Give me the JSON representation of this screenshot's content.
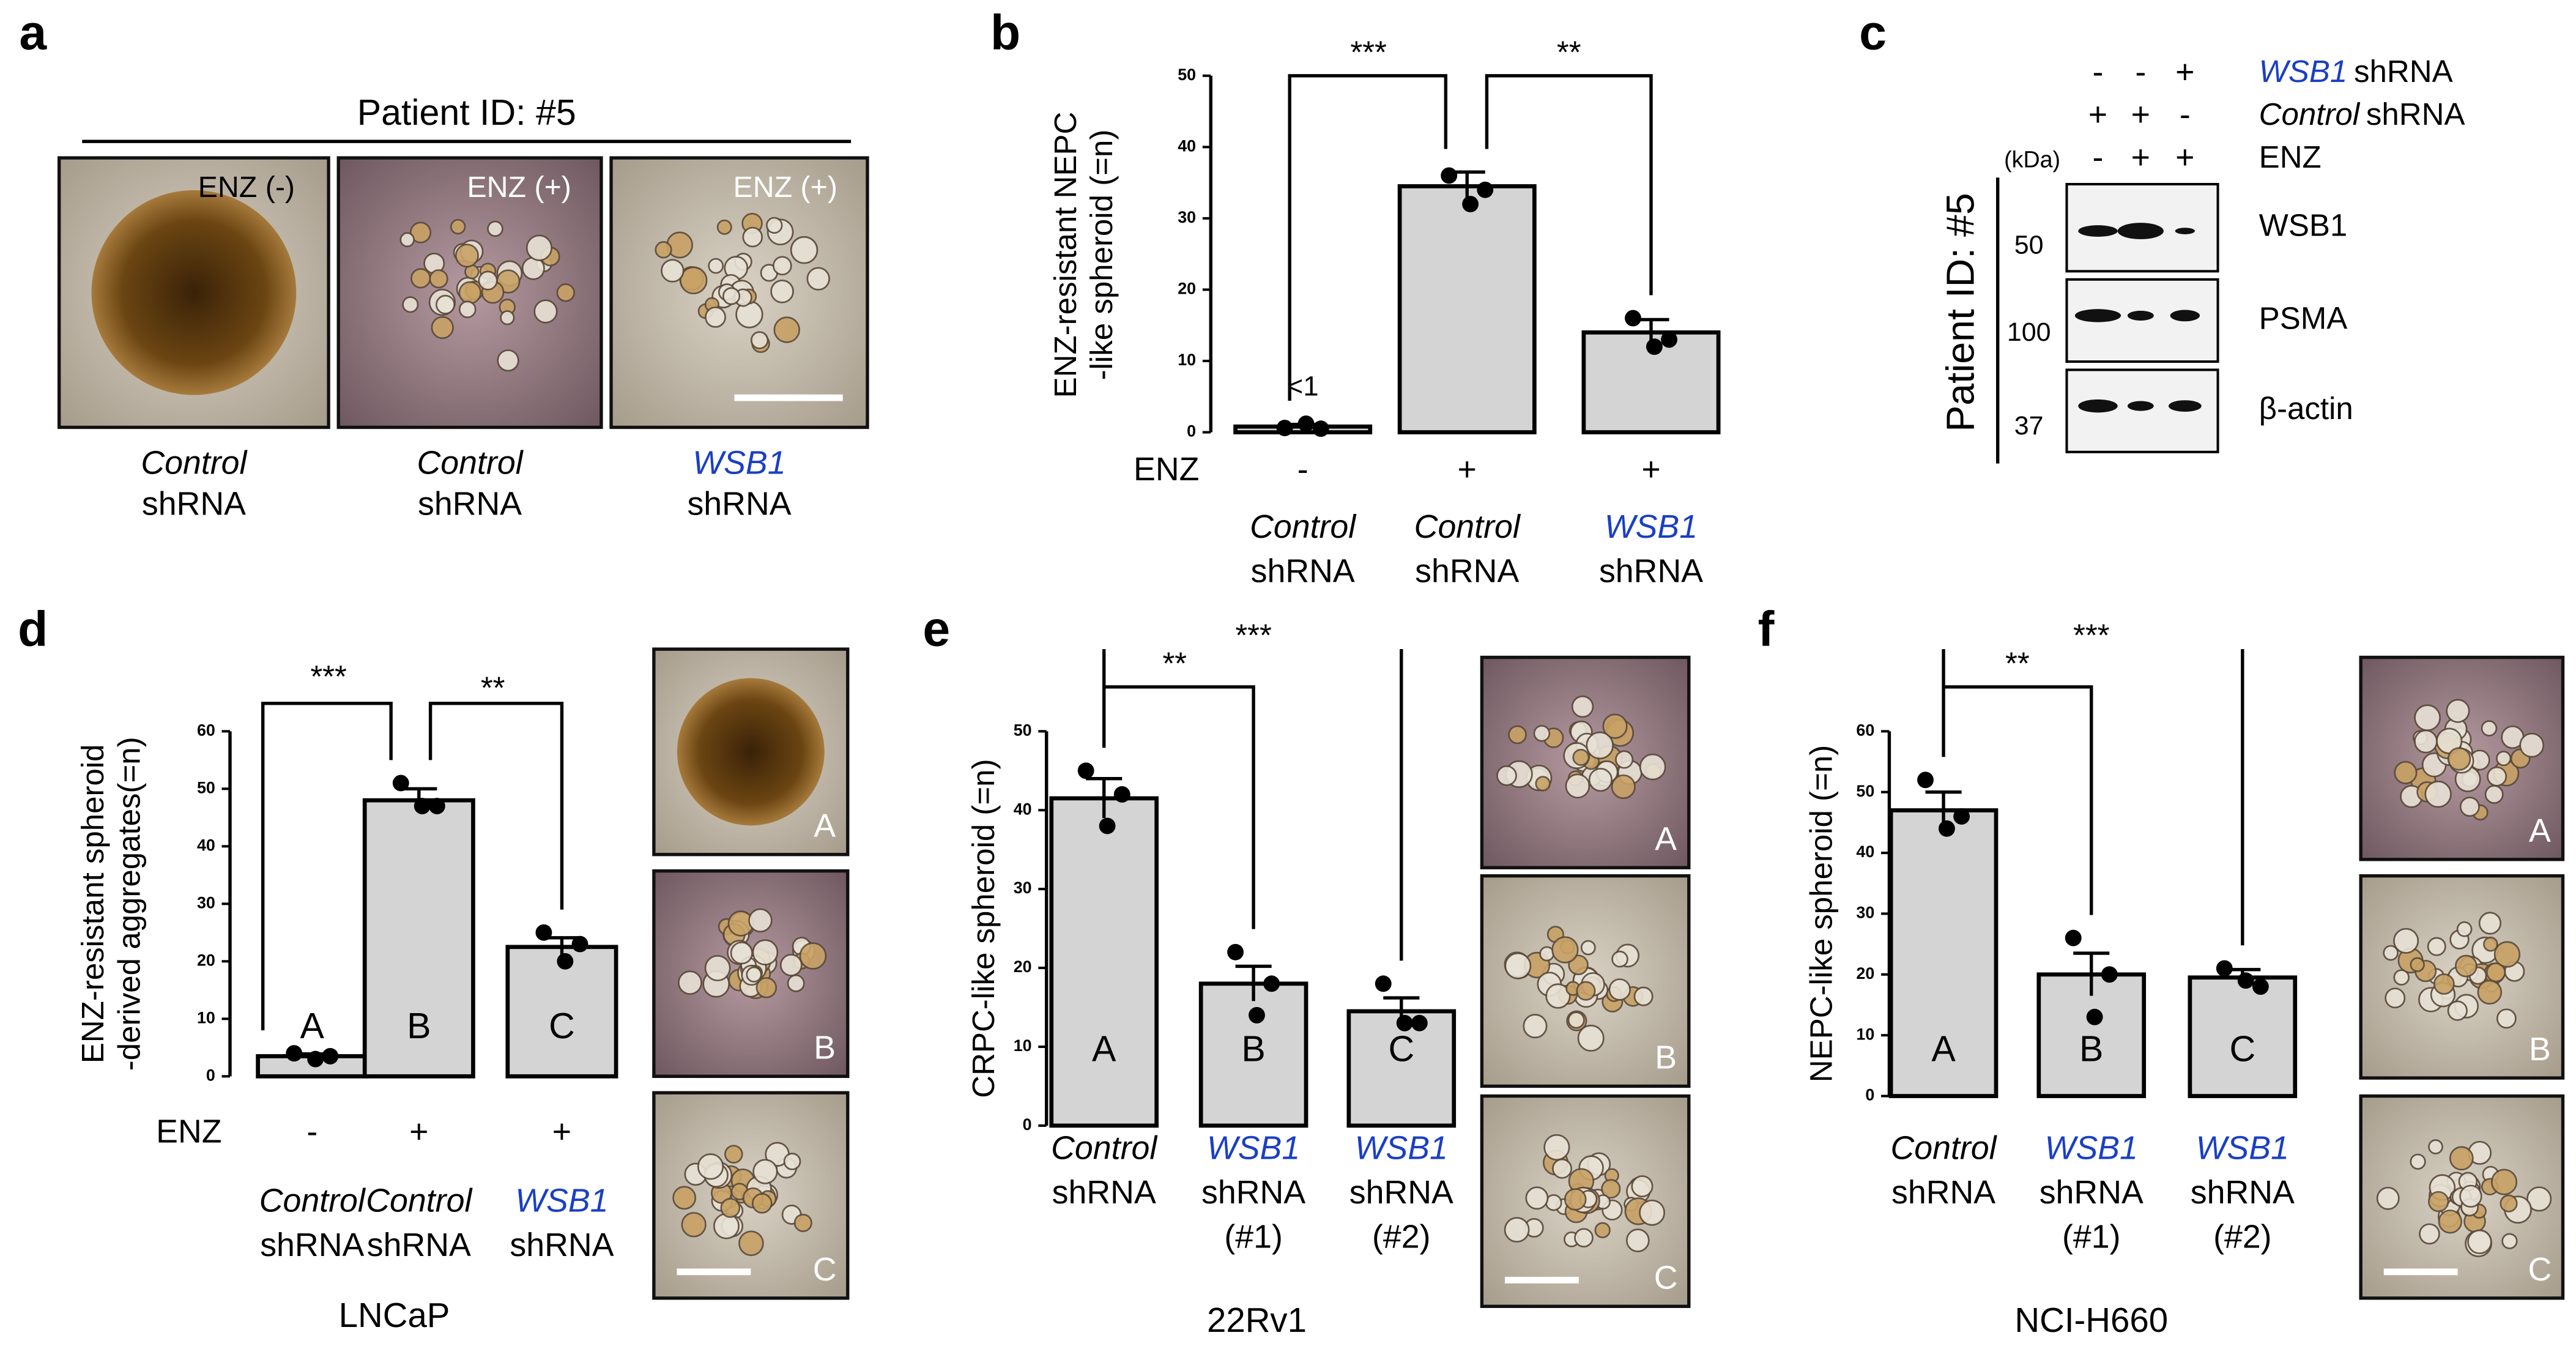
{
  "panel_labels": [
    "a",
    "b",
    "c",
    "d",
    "e",
    "f"
  ],
  "panel_a": {
    "title": "Patient ID: #5",
    "images": [
      "ENZ (-)",
      "ENZ (+)",
      "ENZ (+)"
    ],
    "captions": [
      [
        "Control",
        "shRNA"
      ],
      [
        "Control",
        "shRNA"
      ],
      [
        "WSB1",
        "shRNA"
      ]
    ]
  },
  "panel_c": {
    "rows": [
      {
        "signs": [
          "-",
          "-",
          "+"
        ],
        "gene": "WSB1",
        "suffix": "shRNA"
      },
      {
        "signs": [
          "+",
          "+",
          "-"
        ],
        "gene": "Control",
        "suffix": "shRNA"
      },
      {
        "signs": [
          "-",
          "+",
          "+"
        ],
        "label": "ENZ"
      }
    ],
    "kda": "(kDa)",
    "side_label": "Patient ID: #5",
    "blots": [
      {
        "name": "WSB1",
        "marker": 50
      },
      {
        "name": "PSMA",
        "marker": 100
      },
      {
        "name": "β-actin",
        "marker": 37
      }
    ]
  },
  "chart_data": [
    {
      "type": "bar",
      "ylabel": [
        "ENZ-resistant NEPC",
        "-like spheroid (=n)"
      ],
      "categories": [
        [
          "Control",
          "shRNA"
        ],
        [
          "Control",
          "shRNA"
        ],
        [
          "WSB1",
          "shRNA"
        ]
      ],
      "category_colors": [
        "#000000",
        "#000000",
        "#1a3fc4"
      ],
      "enz_label": "ENZ",
      "enz": [
        "-",
        "+",
        "+"
      ],
      "values": [
        0.8,
        34.5,
        14
      ],
      "value_labels": [
        "<1",
        null,
        null
      ],
      "errors": [
        0.3,
        2,
        1.8
      ],
      "points": [
        [
          0.6,
          1.2,
          0.5
        ],
        [
          36,
          32,
          34
        ],
        [
          16,
          12,
          13
        ]
      ],
      "annotations": [
        "***",
        "**"
      ],
      "color": "#d4d4d4",
      "ylim": [
        0,
        50
      ],
      "yticks": [
        0,
        10,
        20,
        30,
        40,
        50
      ]
    },
    {
      "type": "bar",
      "ylabel": [
        "ENZ-resistant spheroid",
        "-derived aggregates(=n)"
      ],
      "categories": [
        [
          "Control",
          "shRNA"
        ],
        [
          "Control",
          "shRNA"
        ],
        [
          "WSB1",
          "shRNA"
        ]
      ],
      "category_colors": [
        "#000000",
        "#000000",
        "#1a3fc4"
      ],
      "enz_label": "ENZ",
      "enz": [
        "-",
        "+",
        "+"
      ],
      "values": [
        3.5,
        48,
        22.5
      ],
      "errors": [
        0.4,
        2,
        1.6
      ],
      "points": [
        [
          4,
          3,
          3.5
        ],
        [
          51,
          47,
          47
        ],
        [
          25,
          20,
          23
        ]
      ],
      "bar_labels": [
        "A",
        "B",
        "C"
      ],
      "image_labels": [
        "A",
        "B",
        "C"
      ],
      "annotations": [
        "***",
        "**"
      ],
      "caption": "LNCaP",
      "color": "#d4d4d4",
      "ylim": [
        0,
        60
      ],
      "yticks": [
        0,
        10,
        20,
        30,
        40,
        50,
        60
      ]
    },
    {
      "type": "bar",
      "ylabel": [
        "CRPC-like spheroid (=n)"
      ],
      "categories": [
        [
          "Control",
          "shRNA"
        ],
        [
          "WSB1",
          "shRNA",
          "(#1)"
        ],
        [
          "WSB1",
          "shRNA",
          "(#2)"
        ]
      ],
      "category_colors": [
        "#000000",
        "#1a3fc4",
        "#1a3fc4"
      ],
      "values": [
        41.5,
        18,
        14.5
      ],
      "errors": [
        2.5,
        2.2,
        1.7
      ],
      "points": [
        [
          45,
          38,
          42
        ],
        [
          22,
          14,
          18
        ],
        [
          18,
          13,
          13
        ]
      ],
      "bar_labels": [
        "A",
        "B",
        "C"
      ],
      "image_labels": [
        "A",
        "B",
        "C"
      ],
      "annotations": [
        "**",
        "***"
      ],
      "caption": "22Rv1",
      "color": "#d4d4d4",
      "ylim": [
        0,
        50
      ],
      "yticks": [
        0,
        10,
        20,
        30,
        40,
        50
      ]
    },
    {
      "type": "bar",
      "ylabel": [
        "NEPC-like spheroid (=n)"
      ],
      "categories": [
        [
          "Control",
          "shRNA"
        ],
        [
          "WSB1",
          "shRNA",
          "(#1)"
        ],
        [
          "WSB1",
          "shRNA",
          "(#2)"
        ]
      ],
      "category_colors": [
        "#000000",
        "#1a3fc4",
        "#1a3fc4"
      ],
      "values": [
        47,
        20,
        19.5
      ],
      "errors": [
        3,
        3.5,
        1.3
      ],
      "points": [
        [
          52,
          44,
          46
        ],
        [
          26,
          13,
          20
        ],
        [
          21,
          19,
          18
        ]
      ],
      "bar_labels": [
        "A",
        "B",
        "C"
      ],
      "image_labels": [
        "A",
        "B",
        "C"
      ],
      "annotations": [
        "**",
        "***"
      ],
      "caption": "NCI-H660",
      "color": "#d4d4d4",
      "ylim": [
        0,
        60
      ],
      "yticks": [
        0,
        10,
        20,
        30,
        40,
        50,
        60
      ]
    }
  ]
}
